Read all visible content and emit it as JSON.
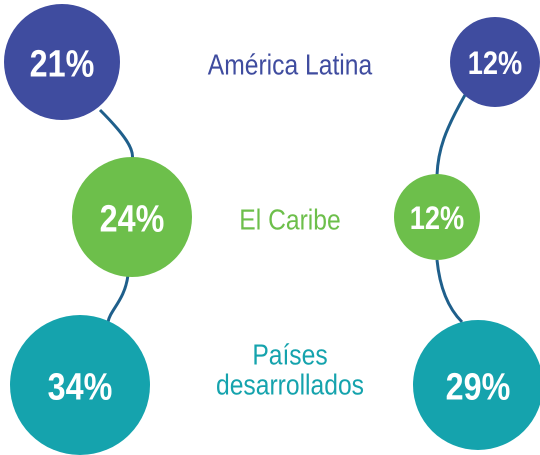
{
  "rows": [
    {
      "label": [
        "América Latina"
      ],
      "left": "21%",
      "right": "12%"
    },
    {
      "label": [
        "El Caribe"
      ],
      "left": "24%",
      "right": "12%"
    },
    {
      "label": [
        "Países",
        "desarrollados"
      ],
      "left": "34%",
      "right": "29%"
    }
  ]
}
